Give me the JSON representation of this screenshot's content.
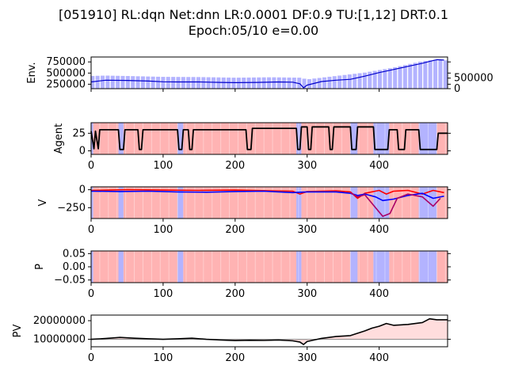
{
  "title": {
    "line1": "[051910] RL:dqn Net:dnn LR:0.0001 DF:0.9 TU:[1,12] DRT:0.1",
    "line2": "Epoch:05/10 e=0.00"
  },
  "colors": {
    "buy_band": "#ffb3b3",
    "sell_band": "#b3b3ff",
    "price_line": "#0000cc",
    "agent_line": "#000000",
    "v_red": "#ff0000",
    "v_blue": "#0000ff",
    "v_purple": "#aa0066",
    "pv_line": "#000000",
    "pv_fill": "#ffdddd"
  },
  "chart_data": [
    {
      "type": "line",
      "id": "env",
      "ylabel": "Env.",
      "xlim": [
        0,
        495
      ],
      "ylim": [
        150000,
        860000
      ],
      "yticks": [
        250000,
        500000,
        750000
      ],
      "ytick_labels": [
        "250000",
        "500000",
        "750000"
      ],
      "y2lim": [
        0,
        1500000
      ],
      "y2ticks": [
        0,
        500000
      ],
      "y2tick_labels": [
        "0",
        "500000"
      ],
      "x_tick_labels_shown": false,
      "series": [
        {
          "role": "price",
          "points": [
            [
              0,
              300000
            ],
            [
              20,
              340000
            ],
            [
              50,
              335000
            ],
            [
              80,
              320000
            ],
            [
              100,
              305000
            ],
            [
              120,
              300000
            ],
            [
              150,
              300000
            ],
            [
              180,
              290000
            ],
            [
              200,
              285000
            ],
            [
              230,
              290000
            ],
            [
              260,
              300000
            ],
            [
              280,
              295000
            ],
            [
              290,
              260000
            ],
            [
              295,
              170000
            ],
            [
              300,
              230000
            ],
            [
              320,
              310000
            ],
            [
              340,
              340000
            ],
            [
              360,
              360000
            ],
            [
              380,
              430000
            ],
            [
              400,
              510000
            ],
            [
              420,
              580000
            ],
            [
              440,
              650000
            ],
            [
              460,
              720000
            ],
            [
              470,
              760000
            ],
            [
              480,
              800000
            ],
            [
              490,
              790000
            ]
          ]
        },
        {
          "role": "volume",
          "points": [
            [
              0,
              600000
            ],
            [
              20,
              620000
            ],
            [
              50,
              600000
            ],
            [
              100,
              560000
            ],
            [
              150,
              550000
            ],
            [
              200,
              520000
            ],
            [
              250,
              540000
            ],
            [
              290,
              520000
            ],
            [
              300,
              440000
            ],
            [
              340,
              600000
            ],
            [
              380,
              760000
            ],
            [
              420,
              1000000
            ],
            [
              460,
              1300000
            ],
            [
              480,
              1380000
            ],
            [
              490,
              1340000
            ]
          ]
        }
      ]
    },
    {
      "type": "line",
      "id": "agent",
      "ylabel": "Agent",
      "xlim": [
        0,
        495
      ],
      "ylim": [
        -5,
        40
      ],
      "yticks": [
        0,
        25
      ],
      "ytick_labels": [
        "0",
        "25"
      ],
      "xticks": [
        0,
        100,
        200,
        300,
        400
      ],
      "xtick_labels": [
        "0",
        "100",
        "200",
        "300",
        "400"
      ],
      "points": [
        [
          0,
          28
        ],
        [
          4,
          3
        ],
        [
          6,
          28
        ],
        [
          10,
          3
        ],
        [
          12,
          30
        ],
        [
          38,
          30
        ],
        [
          40,
          2
        ],
        [
          45,
          2
        ],
        [
          47,
          30
        ],
        [
          65,
          30
        ],
        [
          67,
          2
        ],
        [
          70,
          2
        ],
        [
          72,
          30
        ],
        [
          120,
          30
        ],
        [
          122,
          2
        ],
        [
          126,
          2
        ],
        [
          128,
          30
        ],
        [
          135,
          30
        ],
        [
          137,
          2
        ],
        [
          140,
          2
        ],
        [
          142,
          30
        ],
        [
          215,
          30
        ],
        [
          217,
          2
        ],
        [
          222,
          2
        ],
        [
          224,
          32
        ],
        [
          285,
          32
        ],
        [
          287,
          2
        ],
        [
          290,
          2
        ],
        [
          292,
          34
        ],
        [
          300,
          34
        ],
        [
          302,
          2
        ],
        [
          305,
          2
        ],
        [
          307,
          34
        ],
        [
          330,
          34
        ],
        [
          332,
          2
        ],
        [
          335,
          2
        ],
        [
          337,
          34
        ],
        [
          360,
          34
        ],
        [
          362,
          2
        ],
        [
          368,
          2
        ],
        [
          370,
          34
        ],
        [
          392,
          34
        ],
        [
          394,
          2
        ],
        [
          412,
          2
        ],
        [
          414,
          30
        ],
        [
          425,
          30
        ],
        [
          427,
          2
        ],
        [
          435,
          2
        ],
        [
          437,
          30
        ],
        [
          455,
          30
        ],
        [
          457,
          2
        ],
        [
          480,
          2
        ],
        [
          482,
          25
        ],
        [
          495,
          25
        ]
      ]
    },
    {
      "type": "line",
      "id": "v",
      "ylabel": "V",
      "xlim": [
        0,
        495
      ],
      "ylim": [
        -400,
        40
      ],
      "yticks": [
        -250,
        0
      ],
      "ytick_labels": [
        "−250",
        "0"
      ],
      "xticks": [
        0,
        100,
        200,
        300,
        400
      ],
      "xtick_labels": [
        "0",
        "100",
        "200",
        "300",
        "400"
      ],
      "series": [
        {
          "role": "red",
          "points": [
            [
              0,
              -10
            ],
            [
              50,
              0
            ],
            [
              100,
              -5
            ],
            [
              150,
              -10
            ],
            [
              200,
              -5
            ],
            [
              250,
              -15
            ],
            [
              280,
              -20
            ],
            [
              290,
              -60
            ],
            [
              300,
              -25
            ],
            [
              340,
              -15
            ],
            [
              360,
              -30
            ],
            [
              370,
              -120
            ],
            [
              380,
              -50
            ],
            [
              400,
              -10
            ],
            [
              410,
              -60
            ],
            [
              420,
              -20
            ],
            [
              440,
              -10
            ],
            [
              460,
              -60
            ],
            [
              475,
              -10
            ],
            [
              490,
              -40
            ]
          ]
        },
        {
          "role": "blue",
          "points": [
            [
              0,
              -20
            ],
            [
              40,
              -25
            ],
            [
              80,
              -20
            ],
            [
              120,
              -30
            ],
            [
              160,
              -35
            ],
            [
              200,
              -25
            ],
            [
              240,
              -20
            ],
            [
              280,
              -40
            ],
            [
              300,
              -30
            ],
            [
              340,
              -30
            ],
            [
              360,
              -50
            ],
            [
              370,
              -80
            ],
            [
              380,
              -60
            ],
            [
              395,
              -100
            ],
            [
              405,
              -150
            ],
            [
              420,
              -130
            ],
            [
              440,
              -80
            ],
            [
              460,
              -50
            ],
            [
              475,
              -120
            ],
            [
              490,
              -90
            ]
          ]
        },
        {
          "role": "purple",
          "points": [
            [
              360,
              -40
            ],
            [
              370,
              -100
            ],
            [
              380,
              -70
            ],
            [
              395,
              -250
            ],
            [
              405,
              -370
            ],
            [
              415,
              -330
            ],
            [
              425,
              -120
            ],
            [
              440,
              -60
            ],
            [
              460,
              -100
            ],
            [
              475,
              -230
            ],
            [
              485,
              -120
            ]
          ]
        }
      ]
    },
    {
      "type": "heatmap",
      "id": "p",
      "ylabel": "P",
      "xlim": [
        0,
        495
      ],
      "ylim": [
        -0.06,
        0.06
      ],
      "yticks": [
        -0.05,
        0,
        0.05
      ],
      "ytick_labels": [
        "−0.05",
        "0.00",
        "0.05"
      ],
      "xticks": [
        0,
        100,
        200,
        300,
        400
      ],
      "xtick_labels": [
        "0",
        "100",
        "200",
        "300",
        "400"
      ]
    },
    {
      "type": "area",
      "id": "pv",
      "ylabel": "PV",
      "xlim": [
        0,
        495
      ],
      "ylim": [
        6000000,
        23000000
      ],
      "baseline": 10000000,
      "yticks": [
        10000000,
        20000000
      ],
      "ytick_labels": [
        "10000000",
        "20000000"
      ],
      "xticks": [
        0,
        100,
        200,
        300,
        400
      ],
      "xtick_labels": [
        "0",
        "100",
        "200",
        "300",
        "400"
      ],
      "points": [
        [
          0,
          10000000
        ],
        [
          20,
          10400000
        ],
        [
          40,
          11000000
        ],
        [
          60,
          10600000
        ],
        [
          80,
          10300000
        ],
        [
          100,
          10000000
        ],
        [
          120,
          10300000
        ],
        [
          140,
          10600000
        ],
        [
          160,
          10000000
        ],
        [
          180,
          9600000
        ],
        [
          200,
          9300000
        ],
        [
          220,
          9500000
        ],
        [
          240,
          9400000
        ],
        [
          260,
          9600000
        ],
        [
          280,
          9200000
        ],
        [
          290,
          8500000
        ],
        [
          295,
          7200000
        ],
        [
          300,
          8800000
        ],
        [
          320,
          10500000
        ],
        [
          340,
          11500000
        ],
        [
          360,
          12000000
        ],
        [
          380,
          14500000
        ],
        [
          390,
          16000000
        ],
        [
          400,
          17000000
        ],
        [
          410,
          18500000
        ],
        [
          420,
          17500000
        ],
        [
          440,
          18000000
        ],
        [
          460,
          19000000
        ],
        [
          470,
          21000000
        ],
        [
          480,
          20500000
        ],
        [
          495,
          20500000
        ]
      ]
    }
  ],
  "band_segments": [
    {
      "x0": 0,
      "x1": 3,
      "kind": "sell"
    },
    {
      "x0": 3,
      "x1": 38,
      "kind": "buy"
    },
    {
      "x0": 38,
      "x1": 45,
      "kind": "sell"
    },
    {
      "x0": 45,
      "x1": 120,
      "kind": "buy"
    },
    {
      "x0": 120,
      "x1": 128,
      "kind": "sell"
    },
    {
      "x0": 128,
      "x1": 285,
      "kind": "buy"
    },
    {
      "x0": 285,
      "x1": 292,
      "kind": "sell"
    },
    {
      "x0": 292,
      "x1": 360,
      "kind": "buy"
    },
    {
      "x0": 360,
      "x1": 370,
      "kind": "sell"
    },
    {
      "x0": 370,
      "x1": 392,
      "kind": "buy"
    },
    {
      "x0": 392,
      "x1": 414,
      "kind": "sell"
    },
    {
      "x0": 414,
      "x1": 455,
      "kind": "buy"
    },
    {
      "x0": 455,
      "x1": 480,
      "kind": "sell"
    },
    {
      "x0": 480,
      "x1": 495,
      "kind": "buy"
    }
  ]
}
